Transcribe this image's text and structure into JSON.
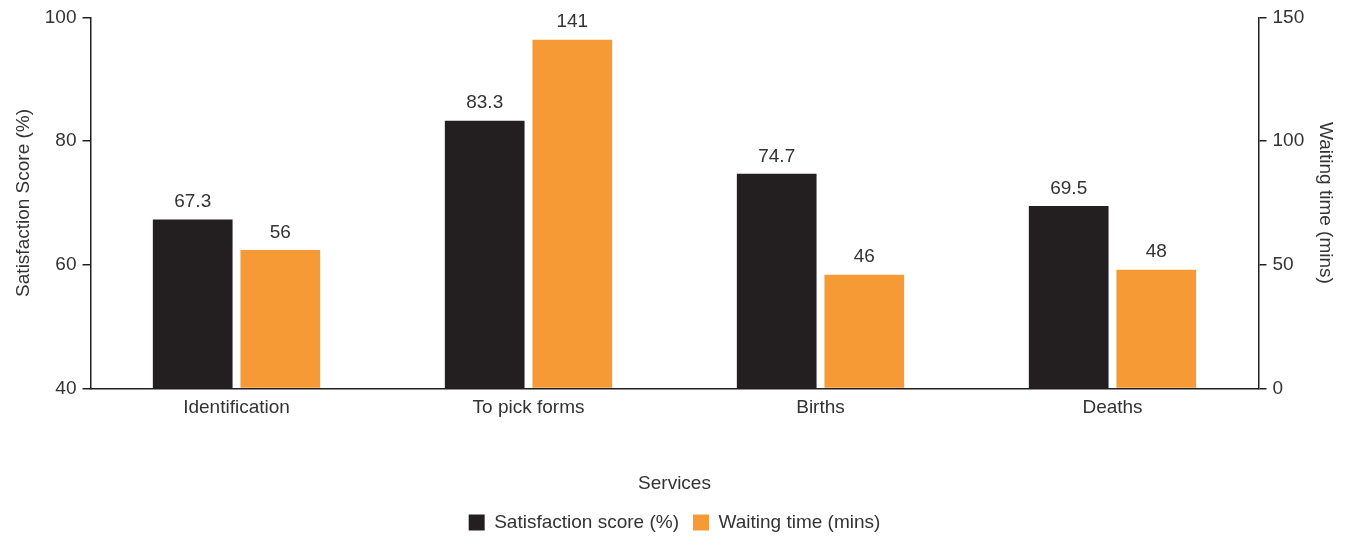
{
  "chart_data": {
    "type": "bar",
    "xlabel": "Services",
    "ylabel": "Satisfaction Score (%)",
    "y2label": "Waiting time (mins)",
    "categories": [
      "Identification",
      "To pick forms",
      "Births",
      "Deaths"
    ],
    "series": [
      {
        "name": "Satisfaction score (%)",
        "color": "#231f20",
        "values": [
          67.3,
          83.3,
          74.7,
          69.5
        ]
      },
      {
        "name": "Waiting time (mins)",
        "color": "#f59a35",
        "values": [
          56,
          141,
          46,
          48
        ],
        "axis": "y2"
      }
    ],
    "ylim": [
      40,
      100
    ],
    "yticks": [
      40,
      60,
      80,
      100
    ],
    "y2lim": [
      0,
      150
    ],
    "y2ticks": [
      0,
      50,
      100,
      150
    ],
    "grid": false,
    "legend": "bottom",
    "data_labels": true
  }
}
